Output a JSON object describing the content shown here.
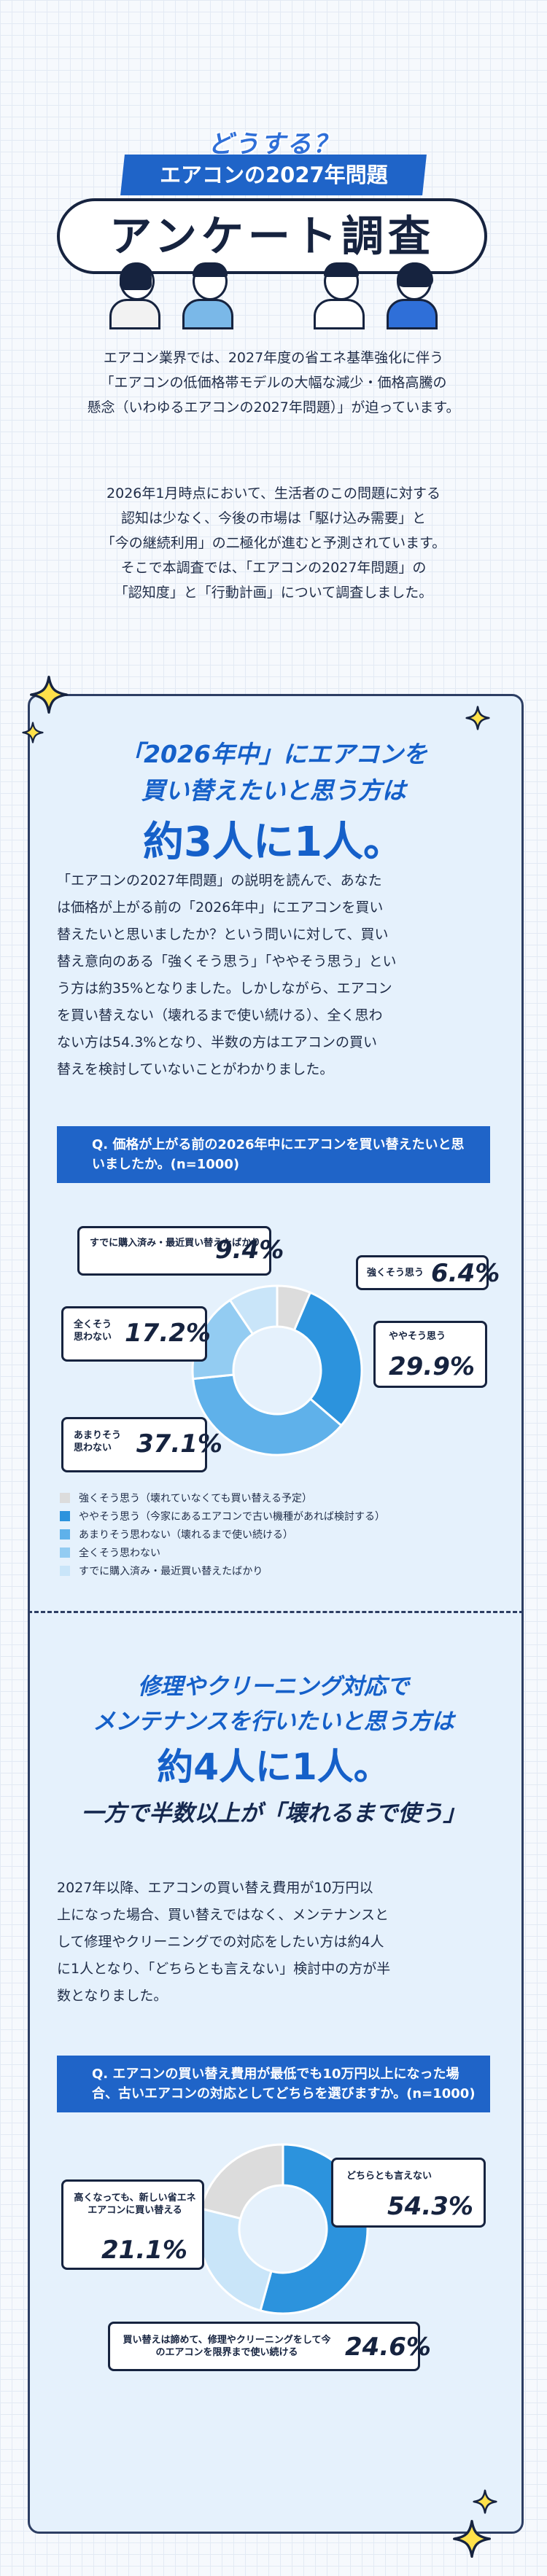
{
  "header": {
    "kicker": "どうする？",
    "band_title": "エアコンの2027年問題",
    "main_title": "アンケート調査"
  },
  "intro": {
    "p1": [
      "エアコン業界では、2027年度の省エネ基準強化に伴う",
      "「エアコンの低価格帯モデルの大幅な減少・価格高騰の",
      "懸念（いわゆるエアコンの2027年問題）」が迫っています。"
    ],
    "p2": [
      "2026年1月時点において、生活者のこの問題に対する",
      "認知は少なく、今後の市場は「駆け込み需要」と",
      "「今の継続利用」の二極化が進むと予測されています。",
      "そこで本調査では、「エアコンの2027年問題」の",
      "「認知度」と「行動計画」について調査しました。"
    ]
  },
  "section1": {
    "heading": [
      "「2026年中」にエアコンを",
      "買い替えたいと思う方は"
    ],
    "big": "約3人に1人。",
    "body": [
      "「エアコンの2027年問題」の説明を読んで、あなた",
      "は価格が上がる前の「2026年中」にエアコンを買い",
      "替えたいと思いましたか？という問いに対して、買い",
      "替え意向のある「強くそう思う」「ややそう思う」とい",
      "う方は約35%となりました。しかしながら、エアコン",
      "を買い替えない（壊れるまで使い続ける）、全く思わ",
      "ない方は54.3%となり、半数の方はエアコンの買い",
      "替えを検討していないことがわかりました。"
    ],
    "question": "Q. 価格が上がる前の2026年中にエアコンを買い替えたいと思いましたか。(n=1000)",
    "callouts": [
      {
        "label": "強くそう思う",
        "value": "6.4%"
      },
      {
        "label": "ややそう思う",
        "value": "29.9%"
      },
      {
        "label": "あまりそう思わない",
        "value": "37.1%"
      },
      {
        "label": "全くそう思わない",
        "value": "17.2%"
      },
      {
        "label": "すでに購入済み・最近買い替えたばかり",
        "value": "9.4%"
      }
    ],
    "legend": [
      "強くそう思う（壊れていなくても買い替える予定）",
      "ややそう思う（今家にあるエアコンで古い機種があれば検討する）",
      "あまりそう思わない（壊れるまで使い続ける）",
      "全くそう思わない",
      "すでに購入済み・最近買い替えたばかり"
    ]
  },
  "section2": {
    "heading": [
      "修理やクリーニング対応で",
      "メンテナンスを行いたいと思う方は"
    ],
    "big": "約4人に1人。",
    "sub": "一方で半数以上が「壊れるまで使う」",
    "body": [
      "2027年以降、エアコンの買い替え費用が10万円以",
      "上になった場合、買い替えではなく、メンテナンスと",
      "して修理やクリーニングでの対応をしたい方は約4人",
      "に1人となり、「どちらとも言えない」検討中の方が半",
      "数となりました。"
    ],
    "question": "Q. エアコンの買い替え費用が最低でも10万円以上になった場合、古いエアコンの対応としてどちらを選びますか。(n=1000)",
    "callouts": [
      {
        "label": "どちらとも言えない",
        "value": "54.3%"
      },
      {
        "label": "買い替えは諦めて、修理やクリーニングをして今のエアコンを限界まで使い続ける",
        "value": "24.6%"
      },
      {
        "label": "高くなっても、新しい省エネエアコンに買い替える",
        "value": "21.1%"
      }
    ]
  },
  "chart_data": [
    {
      "type": "pie",
      "title": "Q. 価格が上がる前の2026年中にエアコンを買い替えたいと思いましたか。(n=1000)",
      "categories": [
        "強くそう思う（壊れていなくても買い替える予定）",
        "ややそう思う（今家にあるエアコンで古い機種があれば検討する）",
        "あまりそう思わない（壊れるまで使い続ける）",
        "全くそう思わない",
        "すでに購入済み・最近買い替えたばかり"
      ],
      "values": [
        6.4,
        29.9,
        37.1,
        17.2,
        9.4
      ],
      "colors": [
        "#dcdcdc",
        "#2c93dd",
        "#5fb1ea",
        "#93ccf2",
        "#c9e5f9"
      ],
      "unit": "%"
    },
    {
      "type": "pie",
      "title": "Q. エアコンの買い替え費用が最低でも10万円以上になった場合、古いエアコンの対応としてどちらを選びますか。(n=1000)",
      "categories": [
        "どちらとも言えない",
        "買い替えは諦めて、修理やクリーニングをして今のエアコンを限界まで使い続ける",
        "高くなっても、新しい省エネエアコンに買い替える"
      ],
      "values": [
        54.3,
        24.6,
        21.1
      ],
      "colors": [
        "#2c93dd",
        "#c9e5f9",
        "#dcdcdc"
      ],
      "unit": "%"
    }
  ]
}
